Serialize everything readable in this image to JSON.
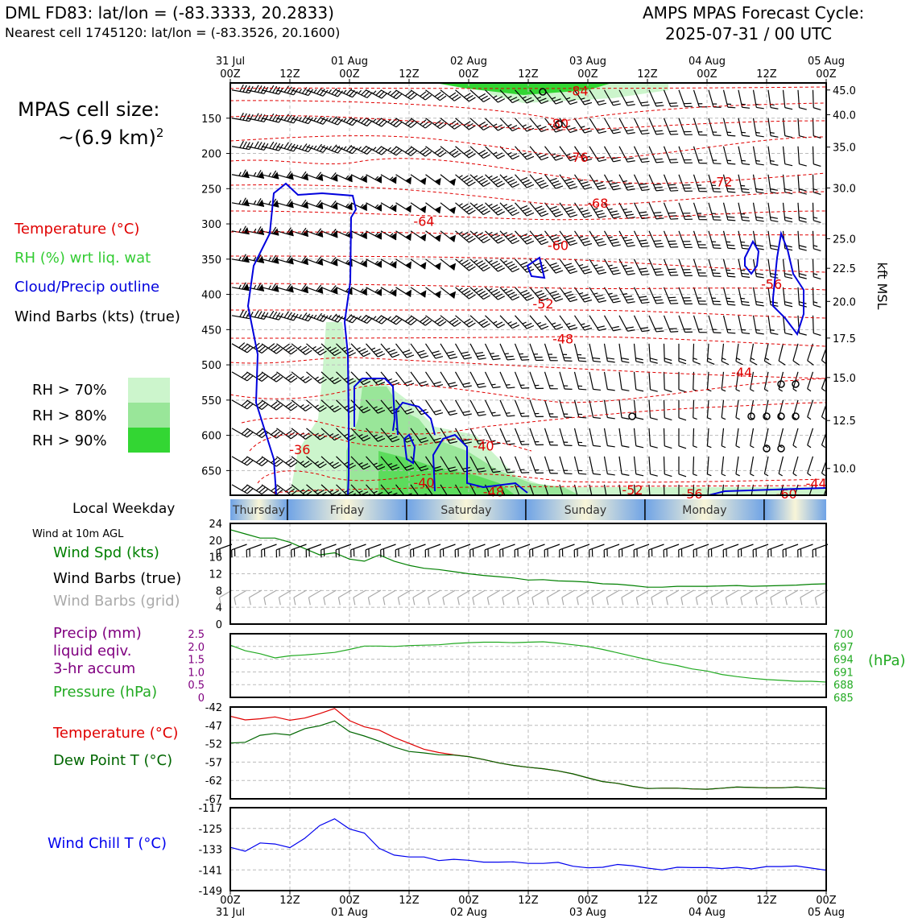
{
  "header": {
    "station_line": "DML FD83: lat/lon = (-83.3333, 20.2833)",
    "nearest_line": "Nearest cell 1745120: lat/lon = (-83.3526, 20.1600)",
    "forecast_title": "AMPS MPAS Forecast Cycle:",
    "forecast_cycle": "2025-07-31 / 00 UTC"
  },
  "sidebar": {
    "cell_size_label": "MPAS cell size:",
    "cell_size_value": "~(6.9 km)",
    "cell_size_exp": "2",
    "legend_temperature": "Temperature (°C)",
    "legend_rh": "RH (%) wrt liq. wat",
    "legend_cloud": "Cloud/Precip outline",
    "legend_wind": "Wind Barbs (kts) (true)",
    "rh_bins": [
      {
        "label": "RH > 70%",
        "color": "#ccf5cc"
      },
      {
        "label": "RH > 80%",
        "color": "#99e699"
      },
      {
        "label": "RH > 90%",
        "color": "#33d633"
      }
    ],
    "weekday_title": "Local Weekday",
    "wind10_title": "Wind at 10m AGL",
    "wind_spd_label": "Wind Spd (kts)",
    "wind_barbs_true_label": "Wind Barbs (true)",
    "wind_barbs_grid_label": "Wind Barbs (grid)",
    "precip_label_1": "Precip (mm)",
    "precip_label_2": "liquid eqiv.",
    "precip_label_3": "3-hr accum",
    "pressure_label": "Pressure (hPa)",
    "temp_label": "Temperature (°C)",
    "dewpoint_label": "Dew Point T (°C)",
    "windchill_label": "Wind Chill T (°C)"
  },
  "colors": {
    "temperature": "#e00000",
    "rh_label": "#33cc33",
    "cloud": "#0000dd",
    "wind_spd": "#008000",
    "barbs_grid": "#aaaaaa",
    "precip": "#800080",
    "pressure": "#22aa22",
    "dewpoint": "#006600",
    "windchill": "#0000ee"
  },
  "chart_data": [
    {
      "type": "heatmap",
      "name_ref": "cross-section",
      "time_axis_top": {
        "ticks": [
          {
            "hour": 0,
            "l1": "31 Jul",
            "l2": "00Z"
          },
          {
            "hour": 12,
            "l1": "",
            "l2": "12Z"
          },
          {
            "hour": 24,
            "l1": "01 Aug",
            "l2": "00Z"
          },
          {
            "hour": 36,
            "l1": "",
            "l2": "12Z"
          },
          {
            "hour": 48,
            "l1": "02 Aug",
            "l2": "00Z"
          },
          {
            "hour": 60,
            "l1": "",
            "l2": "12Z"
          },
          {
            "hour": 72,
            "l1": "03 Aug",
            "l2": "00Z"
          },
          {
            "hour": 84,
            "l1": "",
            "l2": "12Z"
          },
          {
            "hour": 96,
            "l1": "04 Aug",
            "l2": "00Z"
          },
          {
            "hour": 108,
            "l1": "",
            "l2": "12Z"
          },
          {
            "hour": 120,
            "l1": "05 Aug",
            "l2": "00Z"
          }
        ]
      },
      "x_range_hours": [
        0,
        120
      ],
      "pressure_range": [
        100,
        685
      ],
      "pressure_ticks": [
        150,
        200,
        250,
        300,
        350,
        400,
        450,
        500,
        550,
        600,
        650
      ],
      "kft_ticks": [
        {
          "p": 110,
          "label": "45.0"
        },
        {
          "p": 145,
          "label": "40.0"
        },
        {
          "p": 191,
          "label": "35.0"
        },
        {
          "p": 249,
          "label": "30.0"
        },
        {
          "p": 321,
          "label": "25.0"
        },
        {
          "p": 363,
          "label": "22.5"
        },
        {
          "p": 410,
          "label": "20.0"
        },
        {
          "p": 462,
          "label": "17.5"
        },
        {
          "p": 518,
          "label": "15.0"
        },
        {
          "p": 579,
          "label": "12.5"
        },
        {
          "p": 647,
          "label": "10.0"
        }
      ],
      "right_axis_label": "kft MSL",
      "temperature_labels": [
        {
          "t": 70,
          "p": 111,
          "v": "-84"
        },
        {
          "t": 66,
          "p": 157,
          "v": "-80"
        },
        {
          "t": 70,
          "p": 205,
          "v": "-76"
        },
        {
          "t": 99,
          "p": 240,
          "v": "-72"
        },
        {
          "t": 74,
          "p": 270,
          "v": "-68"
        },
        {
          "t": 39,
          "p": 296,
          "v": "-64"
        },
        {
          "t": 66,
          "p": 330,
          "v": "-60"
        },
        {
          "t": 109,
          "p": 385,
          "v": "-56"
        },
        {
          "t": 63,
          "p": 413,
          "v": "-52"
        },
        {
          "t": 67,
          "p": 463,
          "v": "-48"
        },
        {
          "t": 103,
          "p": 510,
          "v": "-44"
        },
        {
          "t": 51,
          "p": 615,
          "v": "-40"
        },
        {
          "t": 14,
          "p": 620,
          "v": "-36"
        },
        {
          "t": 39,
          "p": 667,
          "v": "-40"
        },
        {
          "t": 53,
          "p": 680,
          "v": "-48"
        },
        {
          "t": 81,
          "p": 677,
          "v": "-52"
        },
        {
          "t": 93,
          "p": 683,
          "v": "-56"
        },
        {
          "t": 112,
          "p": 683,
          "v": "-60"
        },
        {
          "t": 118,
          "p": 668,
          "v": "-44"
        }
      ]
    },
    {
      "type": "line",
      "name_ref": "wind-10m",
      "x_hours": [
        0,
        3,
        6,
        9,
        12,
        15,
        18,
        21,
        24,
        27,
        30,
        33,
        36,
        39,
        42,
        45,
        48,
        51,
        54,
        57,
        60,
        63,
        66,
        69,
        72,
        75,
        78,
        81,
        84,
        87,
        90,
        93,
        96,
        99,
        102,
        105,
        108,
        111,
        114,
        117,
        120
      ],
      "series": [
        {
          "name": "Wind Spd (kts)",
          "values": [
            22.5,
            21.5,
            20.5,
            20.5,
            19.5,
            18,
            16.5,
            17,
            15.5,
            15,
            16.5,
            15,
            14,
            13.3,
            13,
            12.5,
            12,
            11.6,
            11.3,
            11,
            10.5,
            10.6,
            10.3,
            10.2,
            10,
            9.6,
            9.5,
            9.2,
            8.8,
            8.8,
            9,
            9,
            9,
            9.1,
            9.2,
            9,
            9.1,
            9.2,
            9.3,
            9.5,
            9.6
          ]
        }
      ],
      "ylim": [
        0,
        24
      ],
      "yticks": [
        0,
        4,
        8,
        12,
        16,
        20,
        24
      ]
    },
    {
      "type": "line",
      "name_ref": "precip-pressure",
      "x_hours": [
        0,
        3,
        6,
        9,
        12,
        15,
        18,
        21,
        24,
        27,
        30,
        33,
        36,
        39,
        42,
        45,
        48,
        51,
        54,
        57,
        60,
        63,
        66,
        69,
        72,
        75,
        78,
        81,
        84,
        87,
        90,
        93,
        96,
        99,
        102,
        105,
        108,
        111,
        114,
        117,
        120
      ],
      "series": [
        {
          "name": "Pressure (hPa)",
          "values": [
            697.3,
            696,
            695.3,
            694.3,
            694.8,
            695,
            695.3,
            695.6,
            696.3,
            697.1,
            697.1,
            697,
            697.2,
            697.3,
            697.4,
            697.7,
            697.9,
            698,
            698,
            697.9,
            698,
            698.1,
            697.8,
            697.4,
            697,
            696.3,
            695.5,
            694.7,
            693.9,
            693.1,
            692.5,
            691.7,
            691.2,
            690.4,
            689.9,
            689.5,
            689.2,
            689,
            688.8,
            688.8,
            688.6
          ]
        },
        {
          "name": "Precip (mm)",
          "values": [
            0,
            0,
            0,
            0,
            0,
            0,
            0,
            0,
            0,
            0,
            0,
            0,
            0,
            0,
            0,
            0,
            0,
            0,
            0,
            0,
            0,
            0,
            0,
            0,
            0,
            0,
            0,
            0,
            0,
            0,
            0,
            0,
            0,
            0,
            0,
            0,
            0,
            0,
            0,
            0,
            0
          ]
        }
      ],
      "ylim_left": [
        0,
        2.5
      ],
      "yticks_left": [
        "0",
        "0.5",
        "1.0",
        "1.5",
        "2.0",
        "2.5"
      ],
      "ylim_right": [
        685,
        700
      ],
      "yticks_right": [
        "685",
        "688",
        "691",
        "694",
        "697",
        "700"
      ],
      "right_axis_label": "(hPa)"
    },
    {
      "type": "line",
      "name_ref": "temp-dewpoint",
      "x_hours": [
        0,
        3,
        6,
        9,
        12,
        15,
        18,
        21,
        24,
        27,
        30,
        33,
        36,
        39,
        42,
        45,
        48,
        51,
        54,
        57,
        60,
        63,
        66,
        69,
        72,
        75,
        78,
        81,
        84,
        87,
        90,
        93,
        96,
        99,
        102,
        105,
        108,
        111,
        114,
        117,
        120
      ],
      "series": [
        {
          "name": "Temperature (°C)",
          "values": [
            -44.5,
            -45.5,
            -45.2,
            -44.7,
            -45.6,
            -45,
            -43.8,
            -42.4,
            -45.7,
            -47.4,
            -48.3,
            -50.3,
            -51.9,
            -53.5,
            -54.4,
            -55,
            -55.5,
            -56.3,
            -57.2,
            -57.9,
            -58.4,
            -58.8,
            -59.4,
            -60.2,
            -61.3,
            -62.3,
            -62.8,
            -63.6,
            -64.2,
            -64.1,
            -64.1,
            -64.3,
            -64.4,
            -64.1,
            -63.8,
            -63.9,
            -64,
            -64,
            -63.8,
            -64,
            -64.2
          ]
        },
        {
          "name": "Dew Point T (°C)",
          "values": [
            -51.8,
            -51.6,
            -49.7,
            -49.2,
            -49.6,
            -47.9,
            -47.1,
            -45.8,
            -48.7,
            -49.9,
            -51.3,
            -52.9,
            -54.1,
            -54.5,
            -55,
            -55.1,
            -55.5,
            -56.3,
            -57.2,
            -57.9,
            -58.4,
            -58.8,
            -59.4,
            -60.2,
            -61.3,
            -62.3,
            -62.8,
            -63.6,
            -64.2,
            -64.1,
            -64.1,
            -64.3,
            -64.4,
            -64.1,
            -63.8,
            -63.9,
            -64,
            -64,
            -63.8,
            -64,
            -64.2
          ]
        }
      ],
      "ylim": [
        -67,
        -42
      ],
      "yticks": [
        "-67",
        "-62",
        "-57",
        "-52",
        "-47",
        "-42"
      ]
    },
    {
      "type": "line",
      "name_ref": "wind-chill",
      "x_hours": [
        0,
        3,
        6,
        9,
        12,
        15,
        18,
        21,
        24,
        27,
        30,
        33,
        36,
        39,
        42,
        45,
        48,
        51,
        54,
        57,
        60,
        63,
        66,
        69,
        72,
        75,
        78,
        81,
        84,
        87,
        90,
        93,
        96,
        99,
        102,
        105,
        108,
        111,
        114,
        117,
        120
      ],
      "series": [
        {
          "name": "Wind Chill T (°C)",
          "values": [
            -132.3,
            -133.8,
            -130.6,
            -131,
            -132.4,
            -128.8,
            -123.9,
            -121.3,
            -125.2,
            -126.8,
            -132.7,
            -135.3,
            -136,
            -136,
            -137.4,
            -136.9,
            -137.3,
            -138,
            -138,
            -137.9,
            -138.5,
            -138.5,
            -138.1,
            -139.6,
            -140.2,
            -140,
            -138.9,
            -139.4,
            -140.3,
            -141,
            -140,
            -140.1,
            -140.1,
            -140.5,
            -140,
            -140.6,
            -139.7,
            -139.7,
            -139.5,
            -140.3,
            -141.1
          ]
        }
      ],
      "ylim": [
        -149,
        -117
      ],
      "yticks": [
        "-149",
        "-141",
        "-133",
        "-125",
        "-117"
      ]
    }
  ],
  "weekdays": [
    {
      "name": "Thursday",
      "start": 0,
      "end": 11.5
    },
    {
      "name": "Friday",
      "start": 11.5,
      "end": 35.5
    },
    {
      "name": "Saturday",
      "start": 35.5,
      "end": 59.5
    },
    {
      "name": "Sunday",
      "start": 59.5,
      "end": 83.5
    },
    {
      "name": "Monday",
      "start": 83.5,
      "end": 107.5
    },
    {
      "name": "",
      "start": 107.5,
      "end": 120
    }
  ],
  "bottom_axis": {
    "ticks": [
      {
        "hour": 0,
        "l1": "00Z",
        "l2": "31 Jul"
      },
      {
        "hour": 12,
        "l1": "12Z",
        "l2": ""
      },
      {
        "hour": 24,
        "l1": "00Z",
        "l2": "01 Aug"
      },
      {
        "hour": 36,
        "l1": "12Z",
        "l2": ""
      },
      {
        "hour": 48,
        "l1": "00Z",
        "l2": "02 Aug"
      },
      {
        "hour": 60,
        "l1": "12Z",
        "l2": ""
      },
      {
        "hour": 72,
        "l1": "00Z",
        "l2": "03 Aug"
      },
      {
        "hour": 84,
        "l1": "12Z",
        "l2": ""
      },
      {
        "hour": 96,
        "l1": "00Z",
        "l2": "04 Aug"
      },
      {
        "hour": 108,
        "l1": "12Z",
        "l2": ""
      },
      {
        "hour": 120,
        "l1": "00Z",
        "l2": "05 Aug"
      }
    ]
  }
}
